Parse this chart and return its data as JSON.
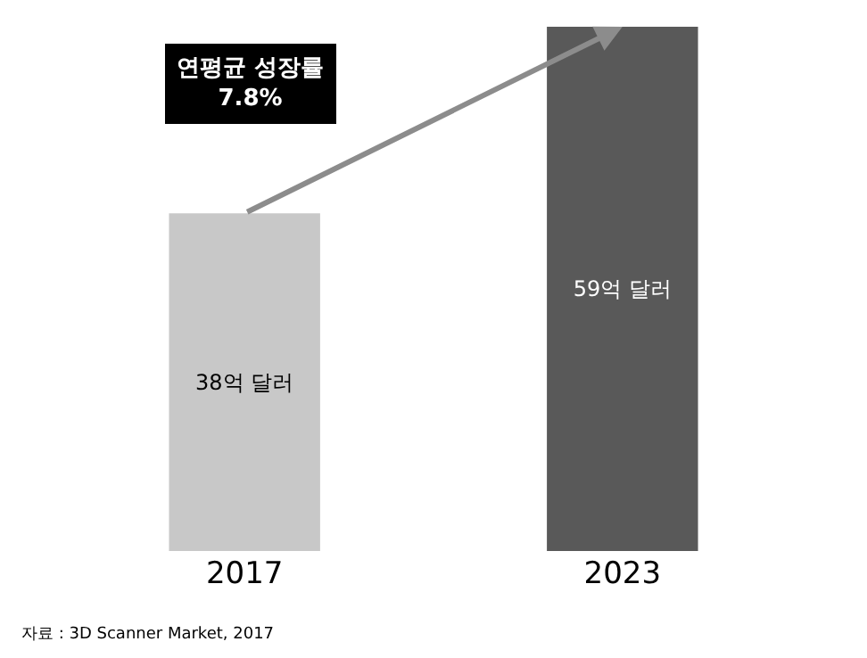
{
  "chart_data": {
    "type": "bar",
    "categories": [
      "2017",
      "2023"
    ],
    "values": [
      38,
      59
    ],
    "colors": [
      "#c8c8c8",
      "#595959"
    ],
    "value_labels": [
      "38억 달러",
      "59억 달러"
    ],
    "annotations": [
      "연평균 성장률\n7.8%",
      "자료 : 3D Scanner Market, 2017"
    ],
    "legend": false
  }
}
